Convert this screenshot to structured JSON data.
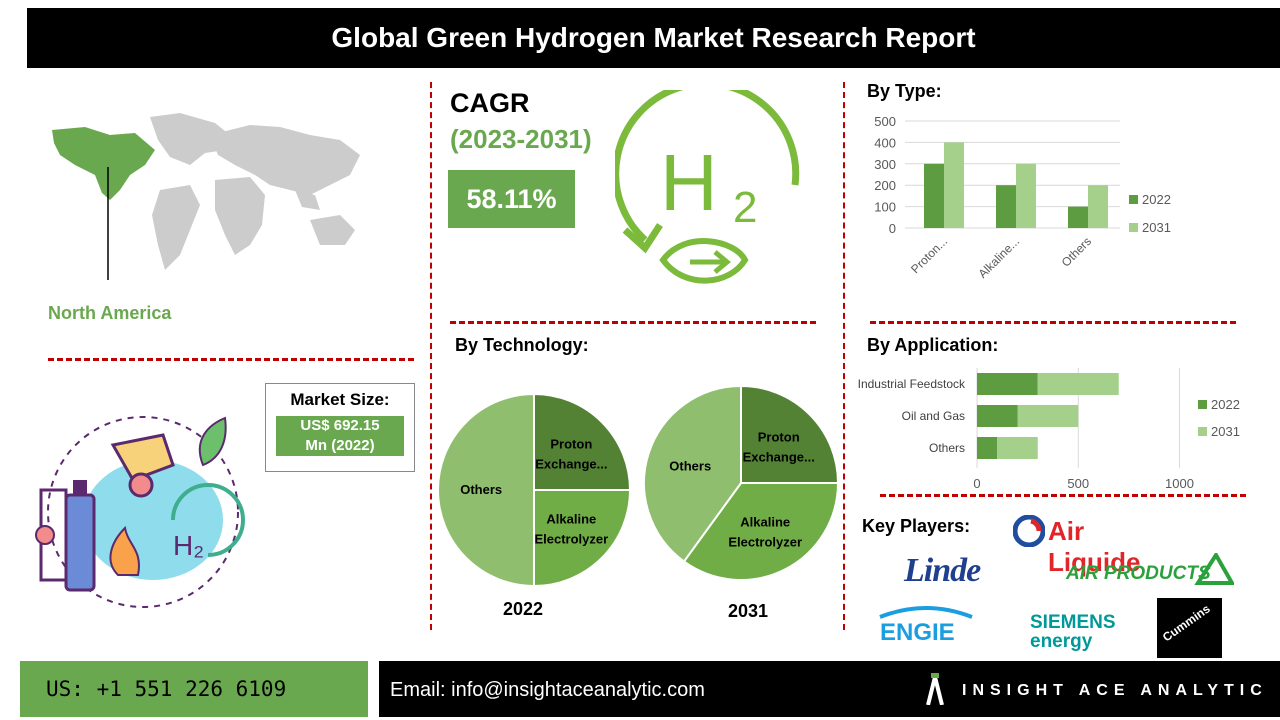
{
  "title": "Global Green Hydrogen Market Research Report",
  "region": {
    "label": "North America"
  },
  "cagr": {
    "title": "CAGR",
    "years": "(2023-2031)",
    "value": "58.11%"
  },
  "market_size": {
    "label": "Market Size:",
    "value_line1": "US$ 692.15",
    "value_line2": "Mn (2022)"
  },
  "sections": {
    "by_type": "By Type:",
    "by_technology": "By Technology:",
    "by_application": "By Application:",
    "key_players": "Key Players:"
  },
  "pie_years": {
    "left": "2022",
    "right": "2031"
  },
  "colors": {
    "dark_green": "#5d9c40",
    "light_green": "#a5d08c",
    "mid_green": "#6aa84f",
    "pie_proton": "#548235",
    "pie_alkaline": "#70ad47",
    "pie_others": "#8fbf6e",
    "accent_red": "#c00000"
  },
  "key_players": [
    {
      "name": "Air Liquide"
    },
    {
      "name": "Linde"
    },
    {
      "name": "AIR PRODUCTS"
    },
    {
      "name": "ENGIE"
    },
    {
      "name": "SIEMENS energy"
    },
    {
      "name": "Cummins"
    }
  ],
  "footer": {
    "phone": "US: +1 551 226 6109",
    "email": "Email: info@insightaceanalytic.com",
    "brand": "INSIGHT ACE ANALYTIC"
  },
  "chart_data": [
    {
      "type": "bar",
      "title": "By Type:",
      "categories": [
        "Proton...",
        "Alkaline...",
        "Others"
      ],
      "series": [
        {
          "name": "2022",
          "values": [
            300,
            200,
            100
          ]
        },
        {
          "name": "2031",
          "values": [
            400,
            300,
            200
          ]
        }
      ],
      "ylim": [
        0,
        500
      ],
      "yticks": [
        "0",
        "100",
        "200",
        "300",
        "400",
        "500"
      ],
      "legend": "right"
    },
    {
      "type": "pie",
      "title": "By Technology:",
      "caption": "2022",
      "slices": [
        {
          "label": "Proton Exchange...",
          "value": 25
        },
        {
          "label": "Alkaline Electrolyzer",
          "value": 25
        },
        {
          "label": "Others",
          "value": 50
        }
      ]
    },
    {
      "type": "pie",
      "title": "By Technology:",
      "caption": "2031",
      "slices": [
        {
          "label": "Proton Exchange...",
          "value": 25
        },
        {
          "label": "Alkaline Electrolyzer",
          "value": 35
        },
        {
          "label": "Others",
          "value": 40
        }
      ]
    },
    {
      "type": "bar",
      "orientation": "horizontal",
      "stacked": true,
      "title": "By Application:",
      "categories": [
        "Industrial Feedstock",
        "Oil and Gas",
        "Others"
      ],
      "series": [
        {
          "name": "2022",
          "values": [
            300,
            200,
            100
          ]
        },
        {
          "name": "2031",
          "values": [
            400,
            300,
            200
          ]
        }
      ],
      "xlim": [
        0,
        1200
      ],
      "xticks": [
        "0",
        "500",
        "1000"
      ],
      "legend": "right"
    }
  ]
}
